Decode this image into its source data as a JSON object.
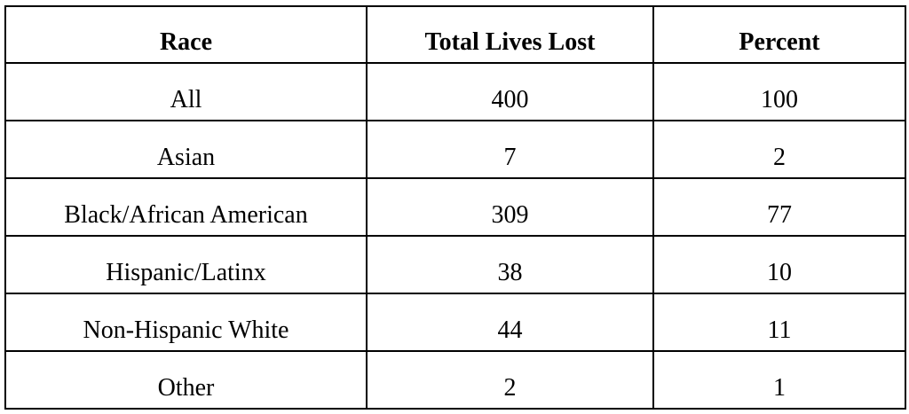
{
  "table": {
    "header": [
      "Race",
      "Total Lives Lost",
      "Percent"
    ],
    "rows": [
      [
        "All",
        400,
        100
      ],
      [
        "Asian",
        7,
        2
      ],
      [
        "Black/African American",
        309,
        77
      ],
      [
        "Hispanic/Latinx",
        38,
        10
      ],
      [
        "Non-Hispanic White",
        44,
        11
      ],
      [
        "Other",
        2,
        1
      ]
    ]
  }
}
